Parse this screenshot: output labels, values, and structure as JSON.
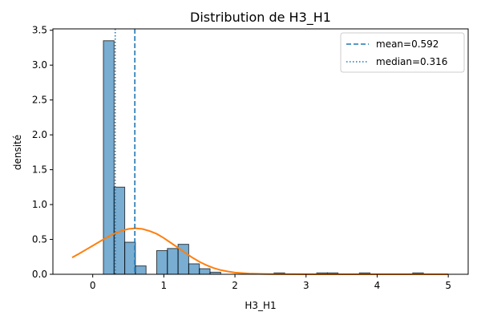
{
  "chart_data": {
    "type": "histogram",
    "title": "Distribution de H3_H1",
    "xlabel": "H3_H1",
    "ylabel": "densité",
    "xlim": [
      -0.56,
      5.28
    ],
    "ylim": [
      0,
      3.52
    ],
    "xticks": [
      0,
      1,
      2,
      3,
      4,
      5
    ],
    "xtick_labels": [
      "0",
      "1",
      "2",
      "3",
      "4",
      "5"
    ],
    "yticks": [
      0,
      0.5,
      1.0,
      1.5,
      2.0,
      2.5,
      3.0,
      3.5
    ],
    "ytick_labels": [
      "0.0",
      "0.5",
      "1.0",
      "1.5",
      "2.0",
      "2.5",
      "3.0",
      "3.5"
    ],
    "bins": {
      "edges": [
        0.15,
        0.3,
        0.45,
        0.6,
        0.75,
        0.9,
        1.05,
        1.2,
        1.35,
        1.5,
        1.65,
        1.8,
        1.95,
        2.1,
        2.25,
        2.4,
        2.55,
        2.7,
        2.85,
        3.0,
        3.15,
        3.3,
        3.45,
        3.6,
        3.75,
        3.9,
        4.05,
        4.2,
        4.35,
        4.5,
        4.65
      ],
      "densities": [
        3.35,
        1.25,
        0.46,
        0.12,
        0.0,
        0.34,
        0.37,
        0.43,
        0.15,
        0.08,
        0.03,
        0.0,
        0.0,
        0.0,
        0.0,
        0.0,
        0.02,
        0.0,
        0.0,
        0.0,
        0.02,
        0.02,
        0.0,
        0.0,
        0.02,
        0.0,
        0.0,
        0.0,
        0.0,
        0.02
      ],
      "color": "#1f77b4"
    },
    "kde": {
      "color": "#ff7f0e",
      "x": [
        -0.29,
        -0.2,
        -0.1,
        0.0,
        0.1,
        0.2,
        0.3,
        0.4,
        0.5,
        0.6,
        0.7,
        0.8,
        0.9,
        1.0,
        1.1,
        1.2,
        1.3,
        1.4,
        1.5,
        1.6,
        1.7,
        1.8,
        1.9,
        2.0,
        2.2,
        2.4,
        2.6,
        2.8,
        3.0,
        3.5,
        4.0,
        4.5,
        5.0
      ],
      "y": [
        0.24,
        0.29,
        0.35,
        0.41,
        0.47,
        0.53,
        0.58,
        0.62,
        0.65,
        0.66,
        0.65,
        0.62,
        0.58,
        0.52,
        0.45,
        0.38,
        0.31,
        0.24,
        0.18,
        0.13,
        0.09,
        0.06,
        0.04,
        0.025,
        0.01,
        0.004,
        0.002,
        0.001,
        0.0,
        0.0,
        0.0,
        0.0,
        0.0
      ]
    },
    "reference_lines": [
      {
        "label": "mean=0.592",
        "x": 0.592,
        "style": "dashed",
        "color": "#1f77b4"
      },
      {
        "label": "median=0.316",
        "x": 0.316,
        "style": "dotted",
        "color": "#1f77b4"
      }
    ],
    "legend": {
      "placement": "top-right",
      "entries": [
        "mean=0.592",
        "median=0.316"
      ]
    },
    "grid": false
  }
}
